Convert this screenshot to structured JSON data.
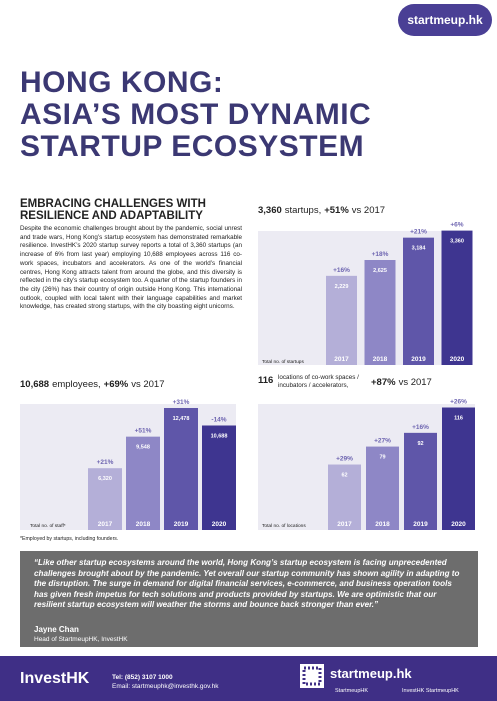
{
  "header": {
    "logo": "startmeup.hk",
    "title_lines": [
      "HONG KONG:",
      "ASIA’S MOST DYNAMIC",
      "STARTUP ECOSYSTEM"
    ]
  },
  "intro": {
    "heading_lines": [
      "EMBRACING CHALLENGES WITH",
      "RESILIENCE AND ADAPTABILITY"
    ],
    "body": "Despite the economic challenges brought about by the pandemic, social unrest and trade wars, Hong Kong’s startup ecosystem has demonstrated remarkable resilience. InvestHK’s 2020 startup survey reports a total of 3,360 startups (an increase of 6% from last year) employing 10,688 employees across 116 co-work spaces, incubators and accelerators. As one of the world’s financial centres, Hong Kong attracts talent from around the globe, and this diversity is reflected in the city’s startup ecosystem too. A quarter of the startup founders in the city (26%) has their country of origin outside Hong Kong. This international outlook, coupled with local talent with their language capabilities and market knowledge, has created strong startups, with the city boasting eight unicorns."
  },
  "chart_data": [
    {
      "type": "bar",
      "title": {
        "number": "3,360",
        "unit_lines": [
          "startups,"
        ],
        "change": "+51%",
        "comparison": "vs 2017"
      },
      "ylabel": "Total no. of startups",
      "categories": [
        "2017",
        "2018",
        "2019",
        "2020"
      ],
      "values": [
        2229,
        2625,
        3184,
        3360
      ],
      "value_labels": [
        "2,229",
        "2,625",
        "3,184",
        "3,360"
      ],
      "growth_labels": [
        "+16%",
        "+18%",
        "+21%",
        "+6%"
      ],
      "colors": [
        "#b4afd8",
        "#8e87c6",
        "#5f56a9",
        "#3e3590"
      ],
      "ylim": [
        0,
        3500
      ]
    },
    {
      "type": "bar",
      "title": {
        "number": "10,688",
        "unit_lines": [
          "employees,"
        ],
        "change": "+69%",
        "comparison": "vs 2017"
      },
      "ylabel": "Total no. of staff*",
      "categories": [
        "2017",
        "2018",
        "2019",
        "2020"
      ],
      "values": [
        6320,
        9548,
        12478,
        10688
      ],
      "value_labels": [
        "6,320",
        "9,548",
        "12,478",
        "10,688"
      ],
      "growth_labels": [
        "+21%",
        "+51%",
        "+31%",
        "-14%"
      ],
      "colors": [
        "#b4afd8",
        "#8e87c6",
        "#5f56a9",
        "#3e3590"
      ],
      "ylim": [
        0,
        13500
      ]
    },
    {
      "type": "bar",
      "title": {
        "number": "116",
        "unit_lines": [
          "locations of co-work spaces /",
          "incubators / accelerators,"
        ],
        "change": "+87%",
        "comparison": "vs 2017"
      },
      "ylabel": "Total no. of locations",
      "categories": [
        "2017",
        "2018",
        "2019",
        "2020"
      ],
      "values": [
        62,
        79,
        92,
        116
      ],
      "growth_labels": [
        "+29%",
        "+27%",
        "+16%",
        "+26%"
      ],
      "colors": [
        "#b4afd8",
        "#8e87c6",
        "#5f56a9",
        "#3e3590"
      ],
      "ylim": [
        0,
        125
      ]
    }
  ],
  "footnote": "*Employed by startups, including founders.",
  "quote": {
    "text": "“Like other startup ecosystems around the world, Hong Kong’s startup ecosystem is facing unprecedented challenges brought about by the pandemic. Yet overall our startup community has shown agility in adapting to the disruption. The surge in demand for digital financial services, e-commerce, and business operation tools has given fresh impetus for tech solutions and products provided by startups. We are optimistic that our resilient startup ecosystem will weather the storms and bounce back stronger than ever.”",
    "author": "Jayne Chan",
    "role": "Head of StartmeupHK, InvestHK"
  },
  "footer": {
    "brand": "InvestHK",
    "tel": "Tel: (852) 3107 1000",
    "email": "Email: startmeuphk@investhk.gov.hk",
    "website": "startmeup.hk",
    "social_1": "StartmeupHK",
    "social_2": "InvestHK StartmeupHK"
  }
}
